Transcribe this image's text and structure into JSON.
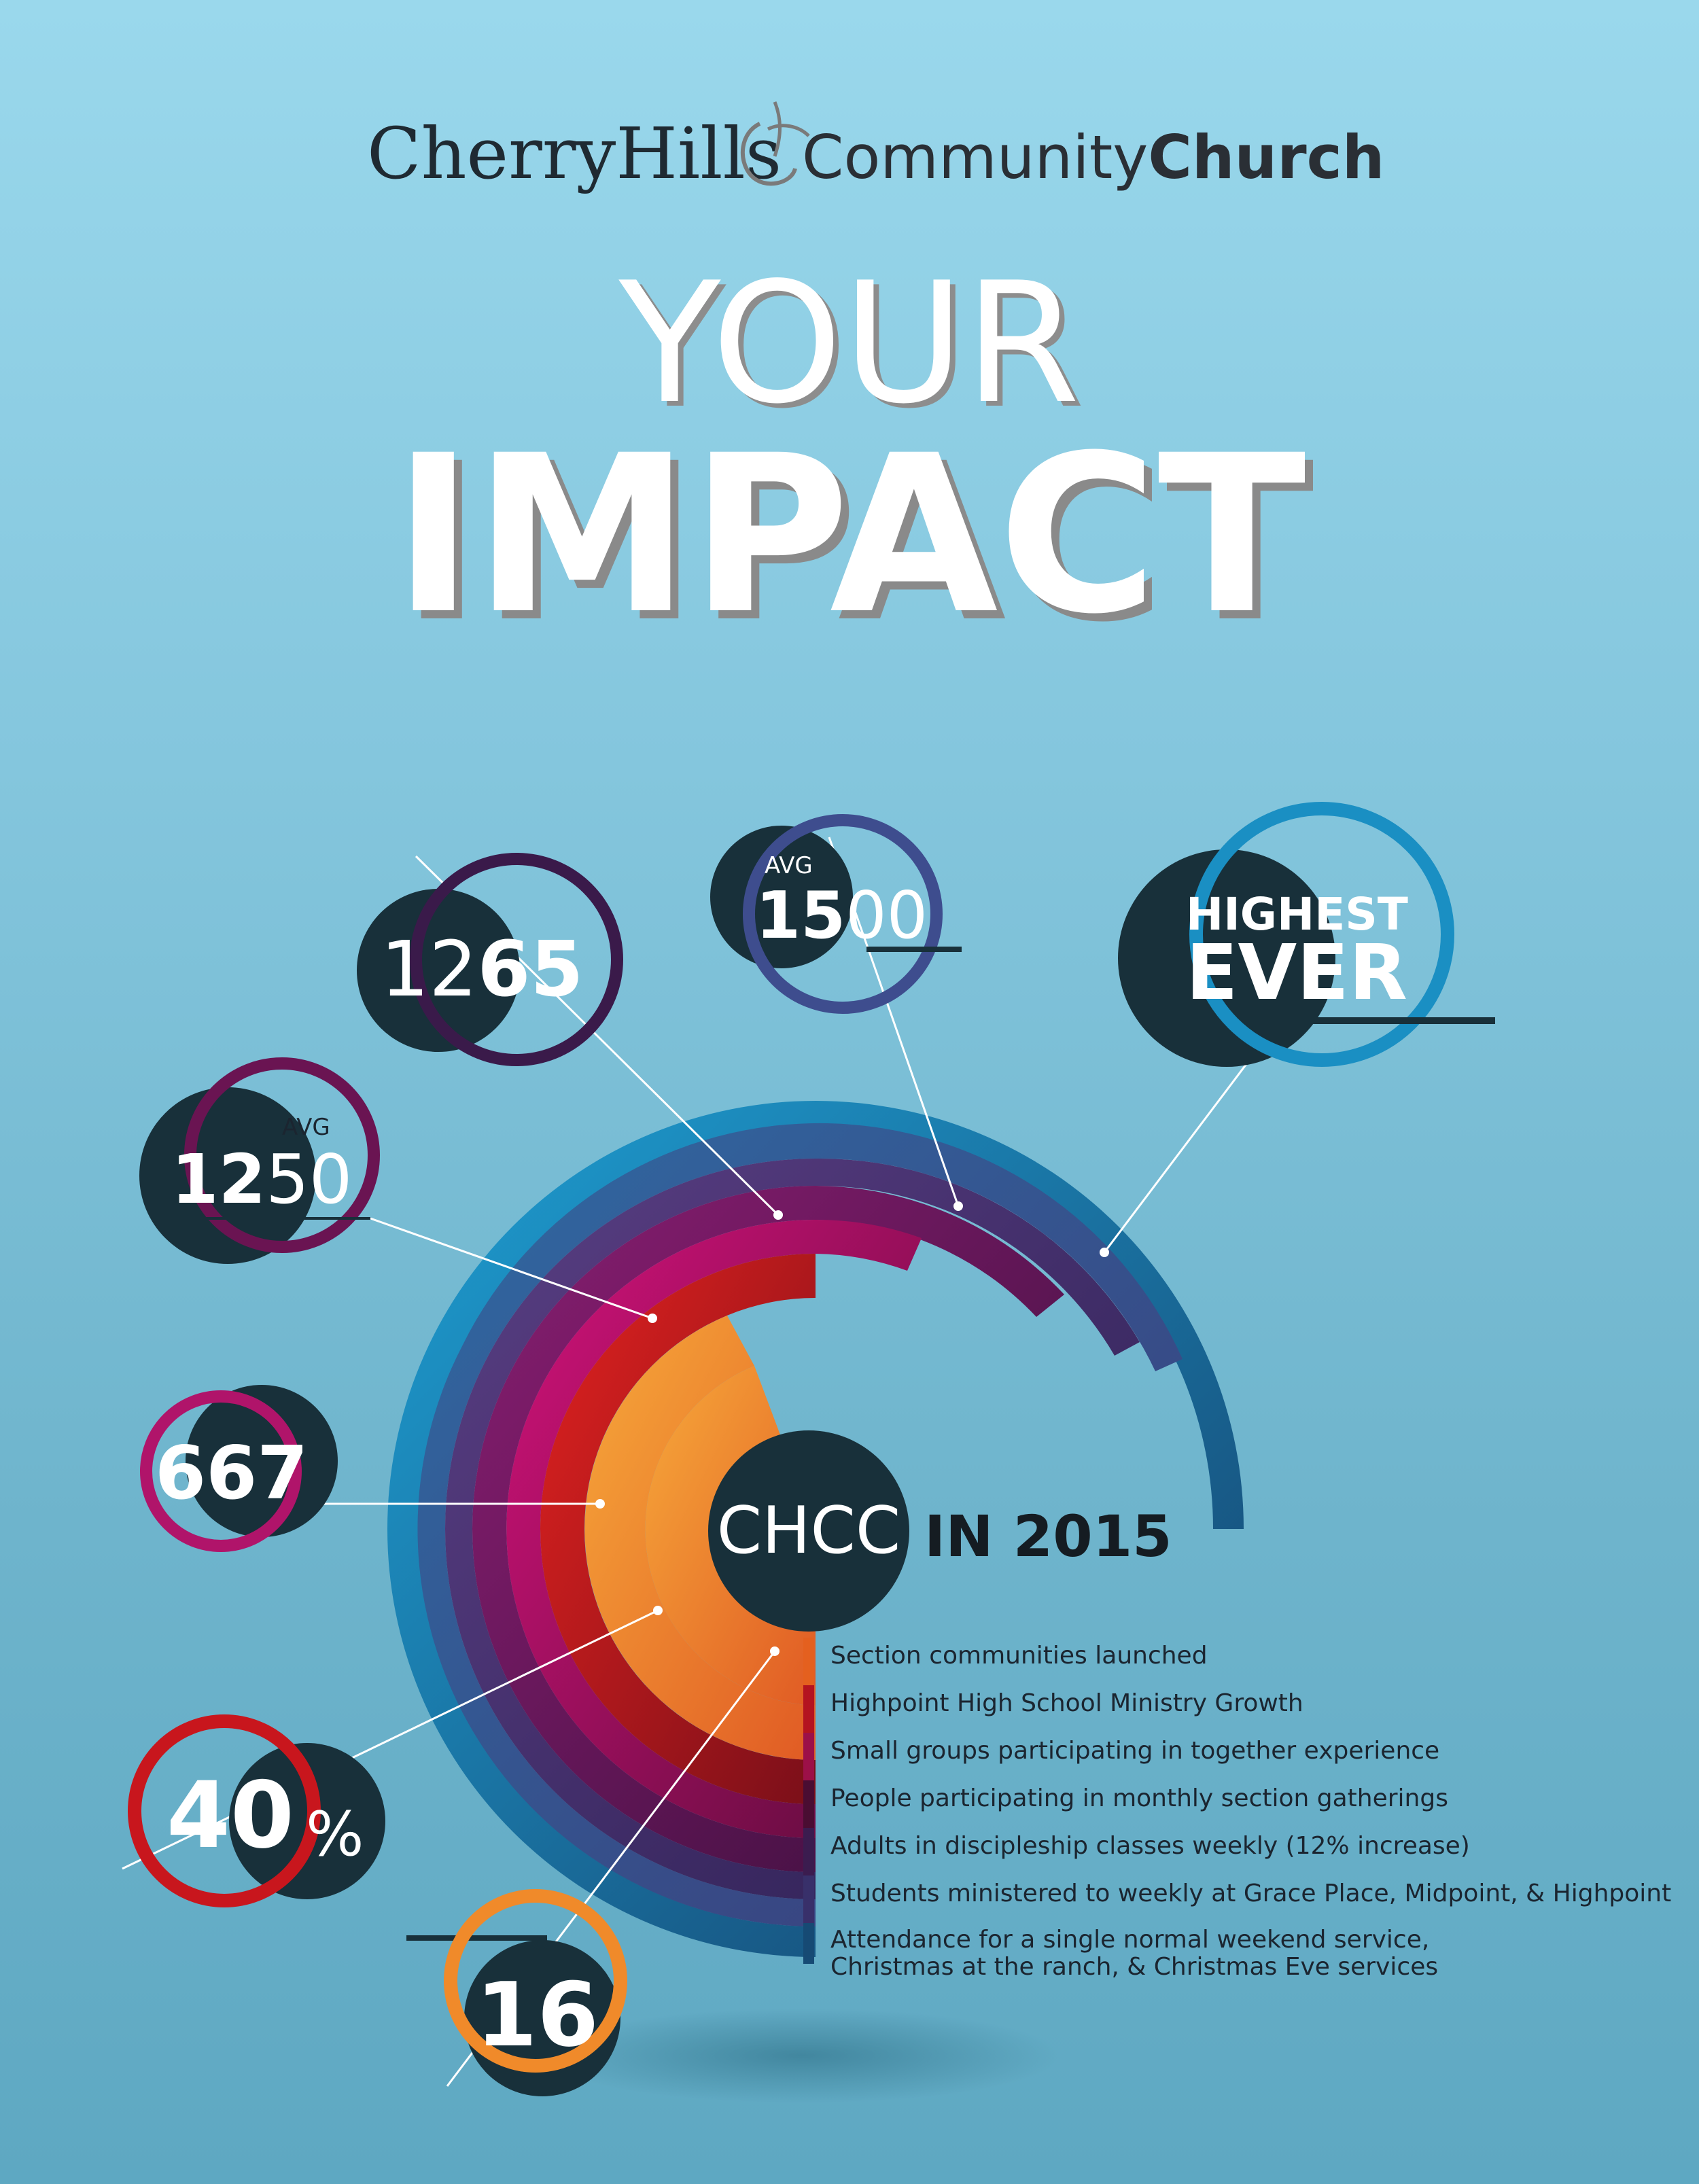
{
  "logo": {
    "part1": "CherryHills",
    "part2": "Community",
    "part3": "Church"
  },
  "title": {
    "line1": "YOUR",
    "line2": "IMPACT"
  },
  "center": {
    "badge": "CHCC",
    "caption": "IN 2015"
  },
  "stats": [
    {
      "id": "1265",
      "bold": "65",
      "light": "12",
      "label": ""
    },
    {
      "id": "1500",
      "prefix": "AVG",
      "bold": "15",
      "light": "00"
    },
    {
      "id": "highest",
      "line1": "HIGHEST",
      "line2": "EVER"
    },
    {
      "id": "1250",
      "prefix": "AVG",
      "bold": "12",
      "light": "50"
    },
    {
      "id": "667",
      "value": "667"
    },
    {
      "id": "40",
      "value": "40",
      "suffix": "%"
    },
    {
      "id": "16",
      "value": "16"
    }
  ],
  "legend": [
    "Section communities launched",
    "Highpoint High School Ministry Growth",
    "Small groups participating in together experience",
    "People participating in monthly section gatherings",
    "Adults in discipleship classes weekly (12% increase)",
    "Students ministered to weekly at Grace Place, Midpoint, & Highpoint",
    "Attendance for a single normal weekend service, Christmas at the ranch, & Christmas Eve services"
  ],
  "colors": {
    "dark": "#18303a",
    "ring_blue": "#1d8bc0",
    "ring_navy": "#275b93",
    "ring_purple": "#4b3a78",
    "ring_plum": "#6a1f5f",
    "ring_magenta": "#b8176a",
    "ring_red": "#c8161d",
    "ring_orange": "#f4a23a"
  }
}
